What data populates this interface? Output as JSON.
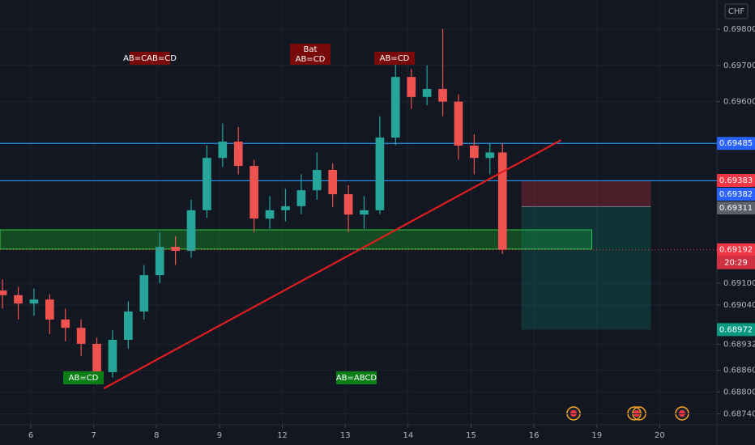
{
  "chart_data": {
    "type": "candlestick",
    "currency": "CHF",
    "xlim": [
      -0.49,
      10.91
    ],
    "xticks": [
      {
        "value": 0,
        "label": "6"
      },
      {
        "value": 1,
        "label": "7"
      },
      {
        "value": 2,
        "label": "8"
      },
      {
        "value": 3,
        "label": "9"
      },
      {
        "value": 4,
        "label": "12"
      },
      {
        "value": 5,
        "label": "13"
      },
      {
        "value": 6,
        "label": "14"
      },
      {
        "value": 7,
        "label": "15"
      },
      {
        "value": 8,
        "label": "16"
      },
      {
        "value": 9,
        "label": "19"
      },
      {
        "value": 10,
        "label": "20"
      }
    ],
    "ylim": [
      0.6871,
      0.6988
    ],
    "yticks": [
      {
        "value": 0.698,
        "label": "0.69800"
      },
      {
        "value": 0.697,
        "label": "0.69700"
      },
      {
        "value": 0.696,
        "label": "0.69600"
      },
      {
        "value": 0.691,
        "label": "0.69100"
      },
      {
        "value": 0.6904,
        "label": "0.69040"
      },
      0.68932,
      {
        "value": 0.6886,
        "label": "0.68860"
      },
      {
        "value": 0.688,
        "label": "0.68800"
      },
      {
        "value": 0.6874,
        "label": "0.68740"
      }
    ],
    "grid": true,
    "up_color": "#26a69a",
    "down_color": "#ef5350",
    "x": [
      -0.45,
      -0.2,
      0.05,
      0.3,
      0.55,
      0.8,
      1.05,
      1.3,
      1.55,
      1.8,
      2.05,
      2.3,
      2.55,
      2.8,
      3.05,
      3.3,
      3.55,
      3.8,
      4.05,
      4.3,
      4.55,
      4.8,
      5.05,
      5.3,
      5.55,
      5.8,
      6.05,
      6.3,
      6.55,
      6.8,
      7.05,
      7.3,
      7.5
    ],
    "open": [
      0.6908,
      0.69067,
      0.69044,
      0.69055,
      0.69,
      0.68977,
      0.68933,
      0.68855,
      0.68944,
      0.69022,
      0.69122,
      0.692,
      0.69189,
      0.69301,
      0.69445,
      0.6949,
      0.69423,
      0.69278,
      0.69301,
      0.69312,
      0.69356,
      0.69412,
      0.69345,
      0.69289,
      0.69301,
      0.69501,
      0.69668,
      0.69613,
      0.69635,
      0.696,
      0.69479,
      0.69445,
      0.6946
    ],
    "high": [
      0.6911,
      0.6909,
      0.69085,
      0.6907,
      0.6903,
      0.69,
      0.6895,
      0.6897,
      0.6905,
      0.6915,
      0.6924,
      0.6923,
      0.6933,
      0.6948,
      0.6954,
      0.6953,
      0.6944,
      0.6934,
      0.6936,
      0.694,
      0.6946,
      0.6943,
      0.6937,
      0.6934,
      0.6956,
      0.6971,
      0.6969,
      0.697,
      0.698,
      0.6962,
      0.6951,
      0.69485,
      0.69485
    ],
    "low": [
      0.6903,
      0.69,
      0.6901,
      0.6896,
      0.6894,
      0.689,
      0.6882,
      0.6884,
      0.6892,
      0.69,
      0.691,
      0.6915,
      0.6917,
      0.6928,
      0.6942,
      0.694,
      0.6924,
      0.6925,
      0.6927,
      0.6929,
      0.6933,
      0.6931,
      0.6924,
      0.6925,
      0.6929,
      0.6948,
      0.6958,
      0.6959,
      0.6956,
      0.6944,
      0.694,
      0.694,
      0.6918
    ],
    "close": [
      0.69067,
      0.69044,
      0.69055,
      0.69,
      0.68977,
      0.68933,
      0.68855,
      0.68944,
      0.69022,
      0.69122,
      0.692,
      0.69189,
      0.69301,
      0.69445,
      0.6949,
      0.69423,
      0.69278,
      0.69301,
      0.69312,
      0.69356,
      0.69412,
      0.69345,
      0.69289,
      0.69301,
      0.69501,
      0.69668,
      0.69613,
      0.69635,
      0.696,
      0.69479,
      0.69445,
      0.6946,
      0.69192
    ],
    "hlines": [
      {
        "value": 0.69485,
        "color": "#2196f3"
      },
      {
        "value": 0.69382,
        "color": "#2196f3"
      }
    ],
    "zone": {
      "top": 0.69247,
      "bottom": 0.69194,
      "x_end": 8.92,
      "color": "#1b8a2a"
    },
    "trend_line": {
      "x": [
        1.16,
        8.43
      ],
      "y": [
        0.6881,
        0.69494
      ],
      "color": "#e01e1e"
    },
    "position": {
      "x": [
        7.8,
        9.86
      ],
      "stop": 0.69383,
      "entry": 0.69311,
      "target": 0.68972
    },
    "price_tags": [
      {
        "value": 0.69485,
        "color": "#2962ff"
      },
      {
        "value": 0.69383,
        "color": "#f23645"
      },
      {
        "value": 0.69382,
        "color": "#2962ff"
      },
      {
        "value": 0.69311,
        "color": "#5d606b"
      },
      {
        "value": 0.69192,
        "color": "#f23645",
        "countdown": "20:29"
      },
      {
        "value": 0.68972,
        "color": "#089981"
      }
    ],
    "annotations": [
      {
        "text": "AB=CAB=CD",
        "kind": "bear"
      },
      {
        "text": "Bat",
        "text2": "AB=CD",
        "kind": "bear"
      },
      {
        "text": "AB=CD",
        "kind": "bear"
      },
      {
        "text": "AB=CD",
        "kind": "bull"
      },
      {
        "text": "AB=ABCD",
        "kind": "bull"
      }
    ]
  }
}
